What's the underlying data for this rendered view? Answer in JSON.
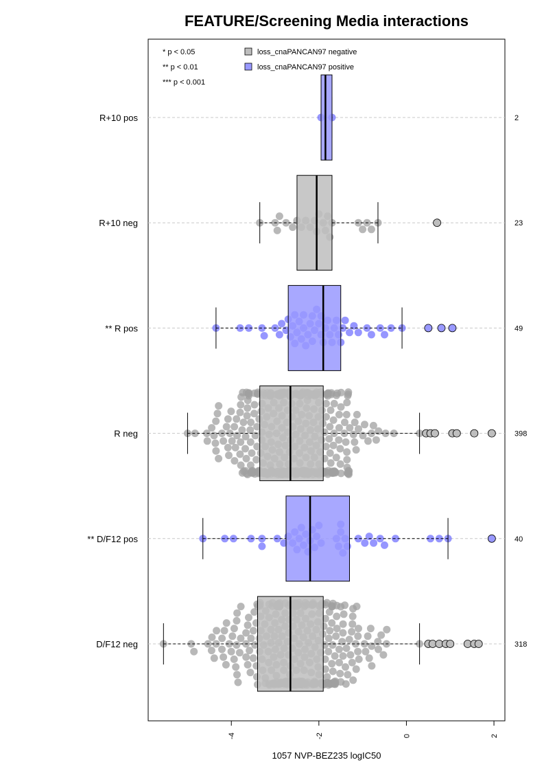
{
  "chart_data": {
    "type": "boxplot",
    "title": "FEATURE/Screening Media interactions",
    "xlabel": "1057 NVP-BEZ235 logIC50",
    "xlim": [
      -5.9,
      2.25
    ],
    "xticks": [
      -4,
      -2,
      0,
      2
    ],
    "xtick_labels": [
      "-4",
      "-2",
      "0",
      "2"
    ],
    "significance_legend": [
      "* p < 0.05",
      "** p < 0.01",
      "*** p < 0.001"
    ],
    "legend": [
      {
        "label": "loss_cnaPANCAN97 negative",
        "color": "#bebebe"
      },
      {
        "label": "loss_cnaPANCAN97 positive",
        "color": "#9999ff"
      }
    ],
    "groups": [
      {
        "label": "R+10 pos",
        "n": "2",
        "positive": true,
        "q1": -1.95,
        "median": -1.85,
        "q3": -1.7,
        "wlo": -1.95,
        "whi": -1.7,
        "outliers": [],
        "points": [
          -1.95,
          -1.7
        ]
      },
      {
        "label": "R+10 neg",
        "n": "23",
        "positive": false,
        "q1": -2.5,
        "median": -2.05,
        "q3": -1.7,
        "wlo": -3.35,
        "whi": -0.65,
        "outliers": [
          0.7
        ],
        "points": [
          -3.35,
          -3.0,
          -2.95,
          -2.9,
          -2.75,
          -2.6,
          -2.5,
          -2.4,
          -2.3,
          -2.2,
          -2.1,
          -2.05,
          -2.0,
          -1.9,
          -1.85,
          -1.8,
          -1.75,
          -1.7,
          -1.1,
          -1.0,
          -0.9,
          -0.8,
          -0.65
        ]
      },
      {
        "label": "** R pos",
        "n": "49",
        "positive": true,
        "q1": -2.7,
        "median": -1.9,
        "q3": -1.5,
        "wlo": -4.35,
        "whi": -0.1,
        "outliers": [
          0.5,
          0.8,
          1.05
        ],
        "points": [
          -4.35,
          -3.8,
          -3.6,
          -3.3,
          -3.25,
          -3.0,
          -2.9,
          -2.85,
          -2.75,
          -2.7,
          -2.65,
          -2.6,
          -2.55,
          -2.5,
          -2.45,
          -2.4,
          -2.35,
          -2.3,
          -2.25,
          -2.2,
          -2.15,
          -2.1,
          -2.05,
          -2.0,
          -1.95,
          -1.9,
          -1.85,
          -1.8,
          -1.75,
          -1.7,
          -1.65,
          -1.6,
          -1.55,
          -1.5,
          -1.45,
          -1.4,
          -1.3,
          -1.2,
          -1.1,
          -0.9,
          -0.8,
          -0.6,
          -0.5,
          -0.35,
          -0.1,
          -2.55,
          -2.35,
          -2.15,
          -1.95
        ]
      },
      {
        "label": "R neg",
        "n": "398",
        "positive": false,
        "q1": -3.35,
        "median": -2.65,
        "q3": -1.9,
        "wlo": -5.0,
        "whi": 0.3,
        "outliers": [
          0.45,
          0.55,
          0.65,
          1.05,
          1.15,
          1.55,
          1.95
        ],
        "density": {
          "mu": -2.6,
          "sigma": 0.85,
          "count": 398,
          "min": -5.0,
          "max": 0.3
        }
      },
      {
        "label": "** D/F12 pos",
        "n": "40",
        "positive": true,
        "q1": -2.75,
        "median": -2.2,
        "q3": -1.3,
        "wlo": -4.65,
        "whi": 0.95,
        "outliers": [
          1.95
        ],
        "points": [
          -4.65,
          -4.15,
          -3.95,
          -3.55,
          -3.3,
          -3.3,
          -2.95,
          -2.8,
          -2.7,
          -2.6,
          -2.5,
          -2.45,
          -2.4,
          -2.35,
          -2.3,
          -2.25,
          -2.2,
          -2.15,
          -2.1,
          -2.05,
          -2.0,
          -1.95,
          -1.6,
          -1.55,
          -1.5,
          -1.45,
          -1.4,
          -1.35,
          -1.1,
          -0.95,
          -0.85,
          -0.75,
          -0.6,
          -0.5,
          -0.25,
          0.55,
          0.75,
          0.95,
          -2.55,
          -1.5
        ]
      },
      {
        "label": "D/F12 neg",
        "n": "318",
        "positive": false,
        "q1": -3.4,
        "median": -2.65,
        "q3": -1.9,
        "wlo": -5.55,
        "whi": 0.3,
        "outliers": [
          0.5,
          0.6,
          0.75,
          0.9,
          1.0,
          1.4,
          1.55,
          1.65
        ],
        "density": {
          "mu": -2.55,
          "sigma": 0.9,
          "count": 318,
          "min": -5.55,
          "max": 0.3
        }
      }
    ]
  }
}
